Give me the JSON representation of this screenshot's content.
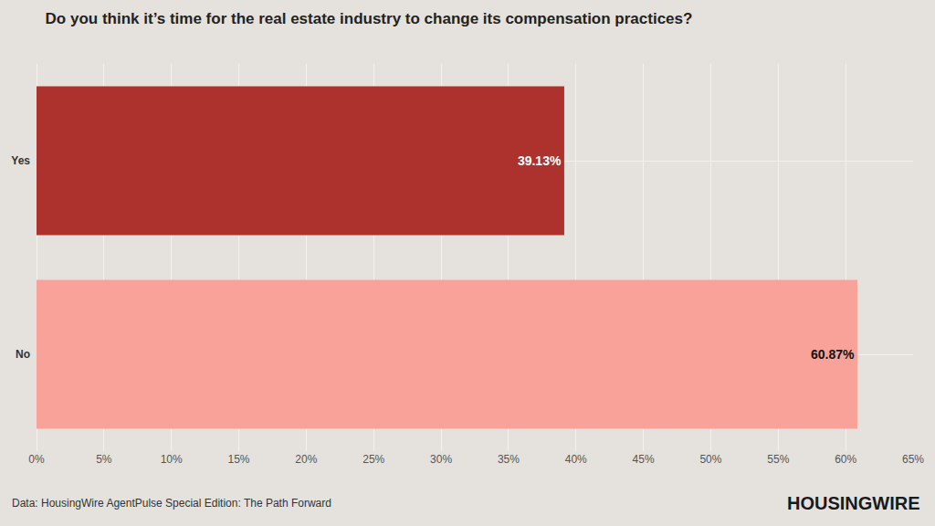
{
  "chart_data": {
    "type": "bar",
    "orientation": "horizontal",
    "title": "Do you think it’s time for the real estate industry to change its compensation practices?",
    "categories": [
      "Yes",
      "No"
    ],
    "values": [
      39.13,
      60.87
    ],
    "value_labels": [
      "39.13%",
      "60.87%"
    ],
    "data_labels": true,
    "colors": [
      "#ad322d",
      "#f8a29a"
    ],
    "xlim": [
      0,
      65
    ],
    "xticks": [
      {
        "value": 0,
        "label": "0%"
      },
      {
        "value": 5,
        "label": "5%"
      },
      {
        "value": 10,
        "label": "10%"
      },
      {
        "value": 15,
        "label": "15%"
      },
      {
        "value": 20,
        "label": "20%"
      },
      {
        "value": 25,
        "label": "25%"
      },
      {
        "value": 30,
        "label": "30%"
      },
      {
        "value": 35,
        "label": "35%"
      },
      {
        "value": 40,
        "label": "40%"
      },
      {
        "value": 45,
        "label": "45%"
      },
      {
        "value": 50,
        "label": "50%"
      },
      {
        "value": 55,
        "label": "55%"
      },
      {
        "value": 60,
        "label": "60%"
      },
      {
        "value": 65,
        "label": "65%"
      }
    ],
    "grid": true,
    "source": "Data: HousingWire AgentPulse Special Edition: The Path Forward",
    "logo": "HOUSINGWIRE"
  }
}
